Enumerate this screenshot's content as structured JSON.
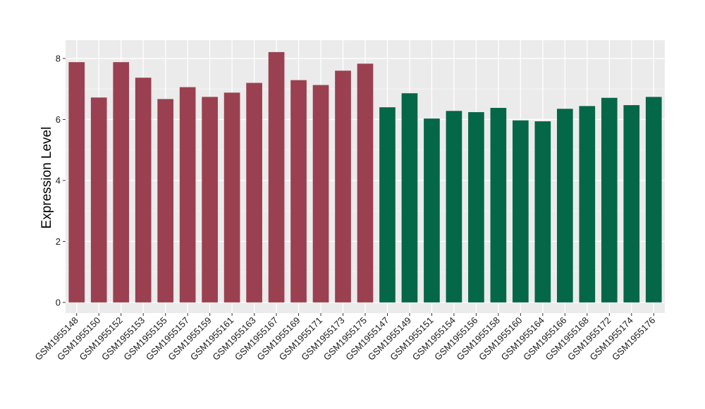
{
  "chart_data": {
    "type": "bar",
    "title": "",
    "xlabel": "",
    "ylabel": "Expression Level",
    "ylim": [
      -0.35,
      8.6
    ],
    "yticks": [
      0,
      2,
      4,
      6,
      8
    ],
    "grid": true,
    "legend": "none",
    "background": "#EBEBEB",
    "categories": [
      "GSM1955148",
      "GSM1955150",
      "GSM1955152",
      "GSM1955153",
      "GSM1955155",
      "GSM1955157",
      "GSM1955159",
      "GSM1955161",
      "GSM1955163",
      "GSM1955167",
      "GSM1955169",
      "GSM1955171",
      "GSM1955173",
      "GSM1955175",
      "GSM1955147",
      "GSM1955149",
      "GSM1955151",
      "GSM1955154",
      "GSM1955156",
      "GSM1955158",
      "GSM1955160",
      "GSM1955164",
      "GSM1955166",
      "GSM1955168",
      "GSM1955172",
      "GSM1955174",
      "GSM1955176"
    ],
    "values": [
      7.88,
      6.72,
      7.88,
      7.37,
      6.67,
      7.06,
      6.74,
      6.88,
      7.2,
      8.21,
      7.29,
      7.13,
      7.6,
      7.83,
      6.4,
      6.86,
      6.03,
      6.28,
      6.24,
      6.38,
      5.97,
      5.94,
      6.35,
      6.44,
      6.71,
      6.47,
      6.74
    ],
    "groups": [
      0,
      0,
      0,
      0,
      0,
      0,
      0,
      0,
      0,
      0,
      0,
      0,
      0,
      0,
      1,
      1,
      1,
      1,
      1,
      1,
      1,
      1,
      1,
      1,
      1,
      1,
      1
    ],
    "group_colors": [
      "#9B4050",
      "#046748"
    ]
  }
}
